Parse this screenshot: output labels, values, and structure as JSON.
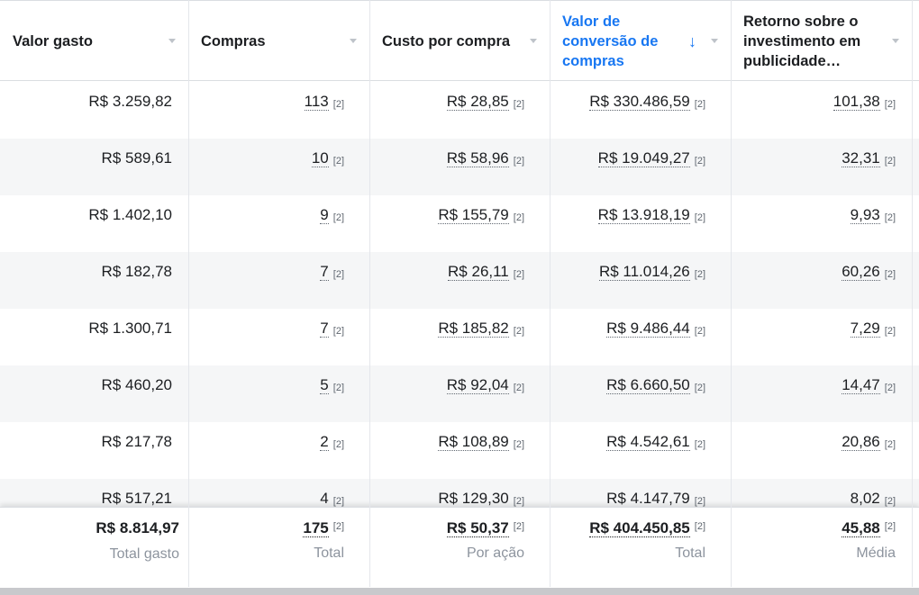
{
  "columns": [
    {
      "title": "Valor gasto",
      "sortable": true,
      "active": false
    },
    {
      "title": "Compras",
      "sortable": true,
      "active": false
    },
    {
      "title": "Custo por compra",
      "sortable": true,
      "active": false
    },
    {
      "title": "Valor de conversão de compras",
      "sortable": true,
      "active": true,
      "sort": "desc"
    },
    {
      "title": "Retorno sobre o investimento em publicidade…",
      "sortable": true,
      "active": false
    }
  ],
  "footnote": "[2]",
  "rows": [
    {
      "spend": "R$ 3.259,82",
      "purchases": "113",
      "cpp": "R$ 28,85",
      "value": "R$ 330.486,59",
      "roas": "101,38"
    },
    {
      "spend": "R$ 589,61",
      "purchases": "10",
      "cpp": "R$ 58,96",
      "value": "R$ 19.049,27",
      "roas": "32,31"
    },
    {
      "spend": "R$ 1.402,10",
      "purchases": "9",
      "cpp": "R$ 155,79",
      "value": "R$ 13.918,19",
      "roas": "9,93"
    },
    {
      "spend": "R$ 182,78",
      "purchases": "7",
      "cpp": "R$ 26,11",
      "value": "R$ 11.014,26",
      "roas": "60,26"
    },
    {
      "spend": "R$ 1.300,71",
      "purchases": "7",
      "cpp": "R$ 185,82",
      "value": "R$ 9.486,44",
      "roas": "7,29"
    },
    {
      "spend": "R$ 460,20",
      "purchases": "5",
      "cpp": "R$ 92,04",
      "value": "R$ 6.660,50",
      "roas": "14,47"
    },
    {
      "spend": "R$ 217,78",
      "purchases": "2",
      "cpp": "R$ 108,89",
      "value": "R$ 4.542,61",
      "roas": "20,86"
    },
    {
      "spend": "R$ 517,21",
      "purchases": "4",
      "cpp": "R$ 129,30",
      "value": "R$ 4.147,79",
      "roas": "8,02"
    }
  ],
  "totals": [
    {
      "value": "R$ 8.814,97",
      "label": "Total gasto",
      "footnote": false
    },
    {
      "value": "175",
      "label": "Total",
      "footnote": true
    },
    {
      "value": "R$ 50,37",
      "label": "Por ação",
      "footnote": true
    },
    {
      "value": "R$ 404.450,85",
      "label": "Total",
      "footnote": true
    },
    {
      "value": "45,88",
      "label": "Média",
      "footnote": true
    }
  ]
}
